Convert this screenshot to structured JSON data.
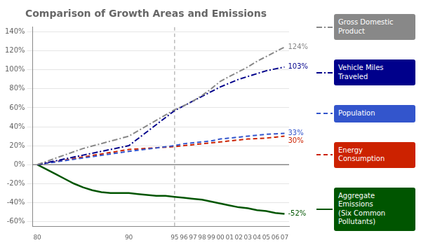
{
  "chart_data": {
    "type": "line",
    "title": "Comparison of Growth Areas and Emissions",
    "xlim": [
      79.5,
      107.5
    ],
    "xticks": [
      80,
      90,
      95,
      96,
      97,
      98,
      99,
      {
        "value": 100,
        "label": "00"
      },
      {
        "value": 101,
        "label": "01"
      },
      {
        "value": 102,
        "label": "02"
      },
      {
        "value": 103,
        "label": "03"
      },
      {
        "value": 104,
        "label": "04"
      },
      {
        "value": 105,
        "label": "05"
      },
      {
        "value": 106,
        "label": "06"
      },
      {
        "value": 107,
        "label": "07"
      }
    ],
    "ylim": [
      -0.65,
      1.45
    ],
    "yticks": [
      {
        "value": -0.6,
        "label": "-60%"
      },
      {
        "value": -0.4,
        "label": "-40%"
      },
      {
        "value": -0.2,
        "label": "-20%"
      },
      {
        "value": 0.0,
        "label": "0%"
      },
      {
        "value": 0.2,
        "label": "20%"
      },
      {
        "value": 0.4,
        "label": "40%"
      },
      {
        "value": 0.6,
        "label": "60%"
      },
      {
        "value": 0.8,
        "label": "80%"
      },
      {
        "value": 1.0,
        "label": "100%"
      },
      {
        "value": 1.2,
        "label": "120%"
      },
      {
        "value": 1.4,
        "label": "140%"
      }
    ],
    "grid": "y",
    "legend": "right",
    "vlines": [
      95
    ],
    "hlines": [
      0
    ],
    "series": [
      {
        "name": "Gross Domestic Product",
        "color": "#888888",
        "line_style": "dashdot",
        "x": [
          80,
          85,
          90,
          95,
          96,
          97,
          98,
          99,
          100,
          101,
          102,
          103,
          104,
          105,
          106,
          107
        ],
        "values": [
          0,
          0.17,
          0.3,
          0.58,
          0.62,
          0.67,
          0.73,
          0.8,
          0.88,
          0.93,
          0.98,
          1.03,
          1.09,
          1.14,
          1.19,
          1.24
        ],
        "value_labels": [
          null,
          null,
          null,
          null,
          null,
          null,
          null,
          null,
          null,
          null,
          null,
          null,
          null,
          null,
          null,
          "124%"
        ]
      },
      {
        "name": "Vehicle Miles Traveled",
        "color": "#00008B",
        "line_style": "dashdot",
        "x": [
          80,
          85,
          90,
          95,
          96,
          97,
          98,
          99,
          100,
          101,
          102,
          103,
          104,
          105,
          106,
          107
        ],
        "values": [
          0,
          0.1,
          0.2,
          0.57,
          0.62,
          0.67,
          0.72,
          0.77,
          0.82,
          0.86,
          0.9,
          0.93,
          0.96,
          0.99,
          1.01,
          1.03
        ],
        "value_labels": [
          null,
          null,
          null,
          null,
          null,
          null,
          null,
          null,
          null,
          null,
          null,
          null,
          null,
          null,
          null,
          "103%"
        ]
      },
      {
        "name": "Population",
        "color": "#3355cc",
        "line_style": "dashed",
        "x": [
          80,
          85,
          90,
          95,
          96,
          97,
          98,
          99,
          100,
          101,
          102,
          103,
          104,
          105,
          106,
          107
        ],
        "values": [
          0,
          0.07,
          0.14,
          0.2,
          0.22,
          0.23,
          0.24,
          0.25,
          0.27,
          0.28,
          0.29,
          0.3,
          0.31,
          0.32,
          0.325,
          0.33
        ],
        "value_labels": [
          null,
          null,
          null,
          null,
          null,
          null,
          null,
          null,
          null,
          null,
          null,
          null,
          null,
          null,
          null,
          "33%"
        ]
      },
      {
        "name": "Energy Consumption",
        "color": "#cc2200",
        "line_style": "dashed",
        "x": [
          80,
          85,
          90,
          95,
          96,
          97,
          98,
          99,
          100,
          101,
          102,
          103,
          104,
          105,
          106,
          107
        ],
        "values": [
          0,
          0.08,
          0.16,
          0.19,
          0.2,
          0.21,
          0.22,
          0.23,
          0.24,
          0.25,
          0.26,
          0.27,
          0.275,
          0.28,
          0.29,
          0.3
        ],
        "value_labels": [
          null,
          null,
          null,
          null,
          null,
          null,
          null,
          null,
          null,
          null,
          null,
          null,
          null,
          null,
          null,
          "30%"
        ]
      },
      {
        "name": "Aggregate Emissions\n(Six Common Pollutants)",
        "color": "#005500",
        "line_style": "solid",
        "x": [
          80,
          81,
          82,
          83,
          84,
          85,
          86,
          87,
          88,
          89,
          90,
          91,
          92,
          93,
          94,
          95,
          96,
          97,
          98,
          99,
          100,
          101,
          102,
          103,
          104,
          105,
          106,
          107
        ],
        "values": [
          0,
          -0.05,
          -0.1,
          -0.15,
          -0.2,
          -0.24,
          -0.27,
          -0.29,
          -0.3,
          -0.3,
          -0.3,
          -0.31,
          -0.32,
          -0.33,
          -0.33,
          -0.34,
          -0.35,
          -0.36,
          -0.37,
          -0.39,
          -0.41,
          -0.43,
          -0.45,
          -0.46,
          -0.48,
          -0.49,
          -0.51,
          -0.52
        ],
        "value_labels": [
          null,
          null,
          null,
          null,
          null,
          null,
          null,
          null,
          null,
          null,
          null,
          null,
          null,
          null,
          null,
          null,
          null,
          null,
          null,
          null,
          null,
          null,
          null,
          null,
          null,
          null,
          null,
          "-52%"
        ]
      }
    ]
  }
}
